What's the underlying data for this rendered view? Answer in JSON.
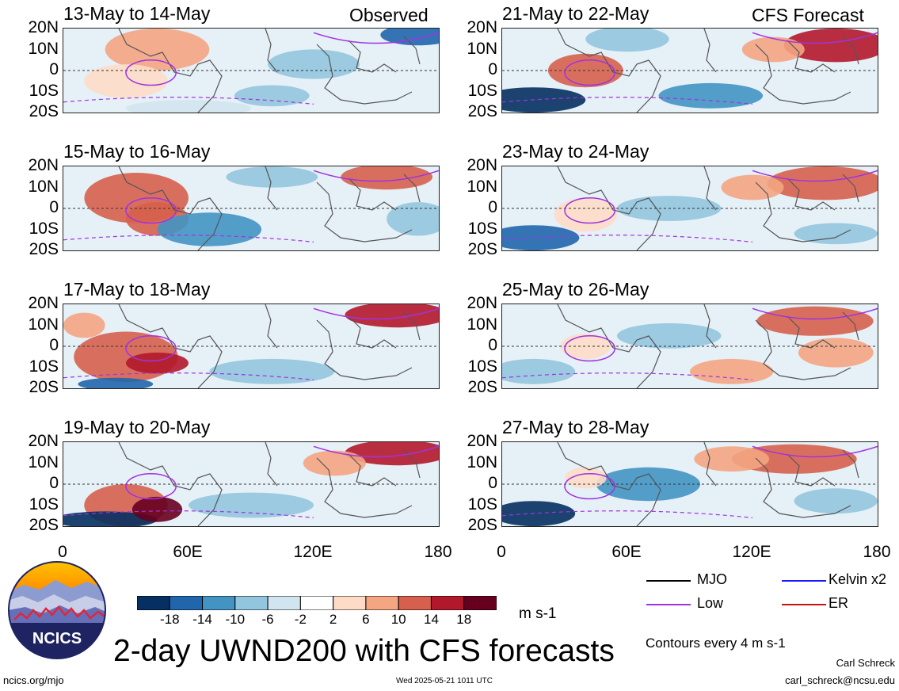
{
  "header": {
    "left_label": "Observed",
    "right_label": "CFS Forecast"
  },
  "panels": [
    {
      "title": "13-May to 14-May",
      "group": "observed"
    },
    {
      "title": "15-May to 16-May",
      "group": "observed"
    },
    {
      "title": "17-May to 18-May",
      "group": "observed"
    },
    {
      "title": "19-May to 20-May",
      "group": "observed"
    },
    {
      "title": "21-May to 22-May",
      "group": "forecast"
    },
    {
      "title": "23-May to 24-May",
      "group": "forecast"
    },
    {
      "title": "25-May to 26-May",
      "group": "forecast"
    },
    {
      "title": "27-May to 28-May",
      "group": "forecast"
    }
  ],
  "lat_labels": [
    "20N",
    "10N",
    "0",
    "10S",
    "20S"
  ],
  "lon_labels": [
    "0",
    "60E",
    "120E",
    "180"
  ],
  "colorbar": {
    "ticks": [
      "-18",
      "-14",
      "-10",
      "-6",
      "-2",
      "2",
      "6",
      "10",
      "14",
      "18"
    ],
    "colors": [
      "#053061",
      "#2166ac",
      "#4393c3",
      "#92c5de",
      "#d1e5f0",
      "#ffffff",
      "#fddbc7",
      "#f4a582",
      "#d6604d",
      "#b2182b",
      "#67001f"
    ],
    "units": "m s-1"
  },
  "legend": {
    "items": [
      {
        "label": "MJO",
        "color": "#000000"
      },
      {
        "label": "Kelvin x2",
        "color": "#1a1aff"
      },
      {
        "label": "Low",
        "color": "#a033e0"
      },
      {
        "label": "ER",
        "color": "#cc1111"
      }
    ],
    "contour_note": "Contours every 4 m s-1"
  },
  "logo": {
    "text": "NCICS"
  },
  "main_title": "2-day UWND200 with CFS forecasts",
  "footer": {
    "url": "ncics.org/mjo",
    "timestamp": "Wed 2025-05-21 1011 UTC",
    "author": "Carl Schreck",
    "email": "carl_schreck@ncsu.edu"
  }
}
